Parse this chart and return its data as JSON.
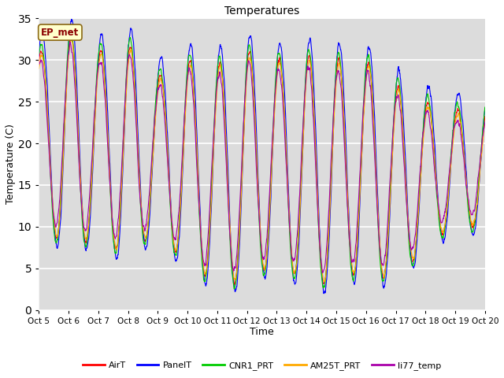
{
  "title": "Temperatures",
  "xlabel": "Time",
  "ylabel": "Temperature (C)",
  "ylim": [
    0,
    35
  ],
  "x_tick_labels": [
    "Oct 5",
    "Oct 6",
    "Oct 7",
    "Oct 8",
    "Oct 9",
    "Oct 10",
    "Oct 11",
    "Oct 12",
    "Oct 13",
    "Oct 14",
    "Oct 15",
    "Oct 16",
    "Oct 17",
    "Oct 18",
    "Oct 19",
    "Oct 20"
  ],
  "series_colors": {
    "AirT": "#ff0000",
    "PanelT": "#0000ff",
    "CNR1_PRT": "#00cc00",
    "AM25T_PRT": "#ffaa00",
    "li77_temp": "#aa00aa"
  },
  "bg_color": "#dcdcdc",
  "annotation_text": "EP_met",
  "annotation_color": "#8b0000",
  "annotation_bg": "#ffffcc",
  "annotation_border": "#8b6914",
  "days": 15,
  "n_points": 2160,
  "base_min": [
    11,
    7,
    9,
    6,
    10,
    5,
    3.5,
    3,
    6,
    3,
    3,
    5,
    3,
    8,
    10
  ],
  "base_max": [
    31,
    33,
    31,
    32,
    28,
    30,
    29.5,
    31,
    30,
    30.5,
    30,
    30,
    27,
    25,
    24
  ],
  "linewidth": 0.8,
  "figsize": [
    6.4,
    4.8
  ],
  "dpi": 100
}
